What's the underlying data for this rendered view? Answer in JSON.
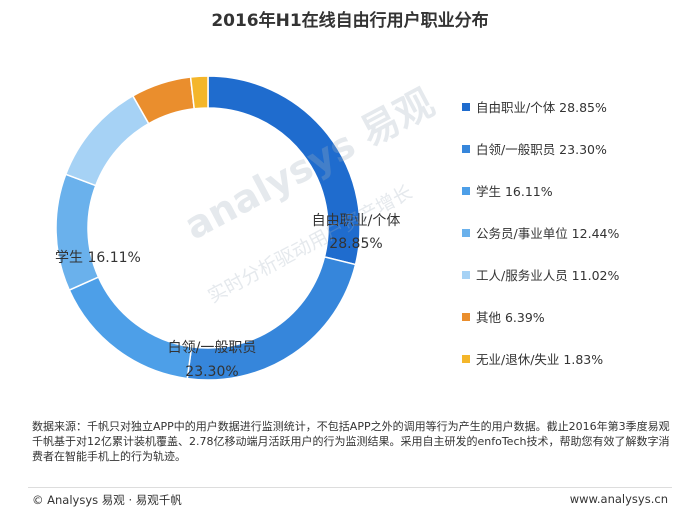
{
  "chart_data": {
    "type": "pie",
    "style": "donut",
    "title": "2016年H1在线自由行用户职业分布",
    "slices": [
      {
        "label": "自由职业/个体",
        "value": 28.85,
        "legend": "自由职业/个体 28.85%",
        "color": "#1f6cce",
        "chart_label": "自由职业/个体",
        "chart_value": "28.85%"
      },
      {
        "label": "白领/一般职员",
        "value": 23.3,
        "legend": "白领/一般职员 23.30%",
        "color": "#3686db",
        "chart_label": "白领/一般职员",
        "chart_value": "23.30%"
      },
      {
        "label": "学生",
        "value": 16.11,
        "legend": "学生 16.11%",
        "color": "#4d9fe8",
        "chart_label": "学生 16.11%",
        "chart_value": ""
      },
      {
        "label": "公务员/事业单位",
        "value": 12.44,
        "legend": "公务员/事业单位 12.44%",
        "color": "#6ab1ec",
        "chart_label": "",
        "chart_value": ""
      },
      {
        "label": "工人/服务业人员",
        "value": 11.02,
        "legend": "工人/服务业人员 11.02%",
        "color": "#a6d2f5",
        "chart_label": "",
        "chart_value": ""
      },
      {
        "label": "其他",
        "value": 6.39,
        "legend": "其他 6.39%",
        "color": "#ea8e2d",
        "chart_label": "",
        "chart_value": ""
      },
      {
        "label": "无业/退休/失业",
        "value": 1.83,
        "legend": "无业/退休/失业 1.83%",
        "color": "#f4b62a",
        "chart_label": "",
        "chart_value": ""
      }
    ],
    "legend_position": "right"
  },
  "watermark": {
    "main": "analysys 易观",
    "sub": "实时分析驱动用户资产增长"
  },
  "source_note": "数据来源：千帆只对独立APP中的用户数据进行监测统计，不包括APP之外的调用等行为产生的用户数据。截止2016年第3季度易观千帆基于对12亿累计装机覆盖、2.78亿移动端月活跃用户的行为监测结果。采用自主研发的enfoTech技术，帮助您有效了解数字消费者在智能手机上的行为轨迹。",
  "footer": {
    "left": "© Analysys 易观 · 易观千帆",
    "right": "www.analysys.cn"
  }
}
